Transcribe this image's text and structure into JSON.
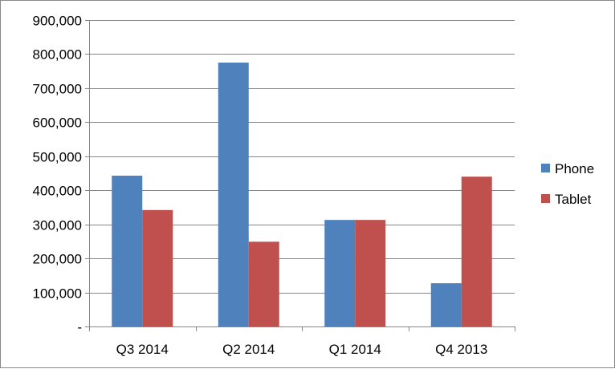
{
  "chart_data": {
    "type": "bar",
    "title": "",
    "xlabel": "",
    "ylabel": "",
    "categories": [
      "Q3 2014",
      "Q2 2014",
      "Q1 2014",
      "Q4 2013"
    ],
    "series": [
      {
        "name": "Phone",
        "color": "#4F81BD",
        "values": [
          443000,
          775000,
          313000,
          127000
        ]
      },
      {
        "name": "Tablet",
        "color": "#C0504D",
        "values": [
          342000,
          249000,
          313000,
          440000
        ]
      }
    ],
    "ylim": [
      0,
      900000
    ],
    "y_ticks": [
      0,
      100000,
      200000,
      300000,
      400000,
      500000,
      600000,
      700000,
      800000,
      900000
    ],
    "y_tick_labels": [
      "-",
      "100,000",
      "200,000",
      "300,000",
      "400,000",
      "500,000",
      "600,000",
      "700,000",
      "800,000",
      "900,000"
    ],
    "grid": true,
    "legend_position": "right"
  }
}
